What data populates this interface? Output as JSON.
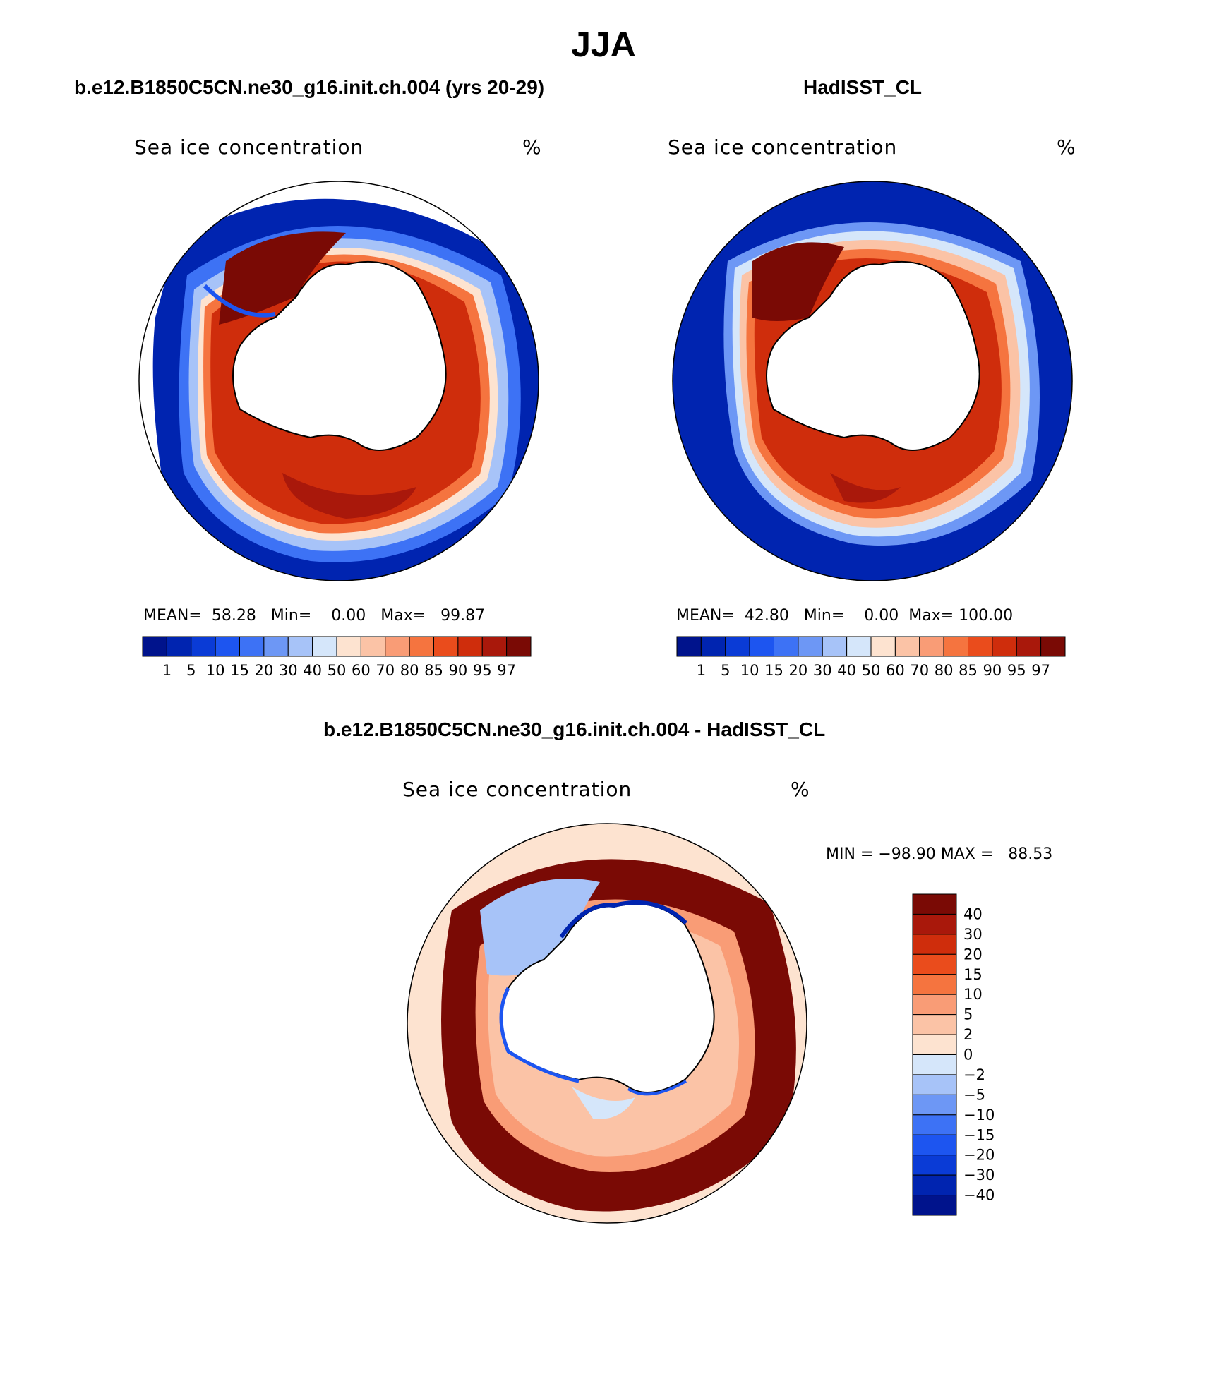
{
  "title": "JJA",
  "panels": [
    {
      "title": "b.e12.B1850C5CN.ne30_g16.init.ch.004 (yrs 20-29)",
      "variable": "Sea ice concentration",
      "units": "%",
      "stats": {
        "mean_label": "MEAN=",
        "mean": "58.28",
        "min_label": "Min=",
        "min": "0.00",
        "max_label": "Max=",
        "max": "99.87"
      }
    },
    {
      "title": "HadISST_CL",
      "variable": "Sea ice concentration",
      "units": "%",
      "stats": {
        "mean_label": "MEAN=",
        "mean": "42.80",
        "min_label": "Min=",
        "min": "0.00",
        "max_label": "Max=",
        "max": "100.00"
      }
    }
  ],
  "diff_panel": {
    "title": "b.e12.B1850C5CN.ne30_g16.init.ch.004 - HadISST_CL",
    "variable": "Sea ice concentration",
    "units": "%",
    "minmax": "MIN = −98.90 MAX =   88.53"
  },
  "colorbar_conc": {
    "labels": [
      "1",
      "5",
      "10",
      "15",
      "20",
      "30",
      "40",
      "50",
      "60",
      "70",
      "80",
      "85",
      "90",
      "95",
      "97"
    ],
    "colors": [
      "#00138c",
      "#0024b0",
      "#0a3bd6",
      "#1d55f0",
      "#3d72f5",
      "#6d97f5",
      "#a7c3f8",
      "#d5e6fa",
      "#fde3d0",
      "#fbc3a6",
      "#f99c76",
      "#f5743f",
      "#ea4c1c",
      "#cf2d0c",
      "#a9180b",
      "#7a0a05"
    ]
  },
  "colorbar_diff": {
    "labels": [
      "40",
      "30",
      "20",
      "15",
      "10",
      "5",
      "2",
      "0",
      "−2",
      "−5",
      "−10",
      "−15",
      "−20",
      "−30",
      "−40"
    ],
    "colors": [
      "#7a0a05",
      "#a9180b",
      "#cf2d0c",
      "#ea4c1c",
      "#f5743f",
      "#f99c76",
      "#fbc3a6",
      "#fde3d0",
      "#d5e6fa",
      "#a7c3f8",
      "#6d97f5",
      "#3d72f5",
      "#1d55f0",
      "#0a3bd6",
      "#0024b0",
      "#00138c"
    ]
  }
}
